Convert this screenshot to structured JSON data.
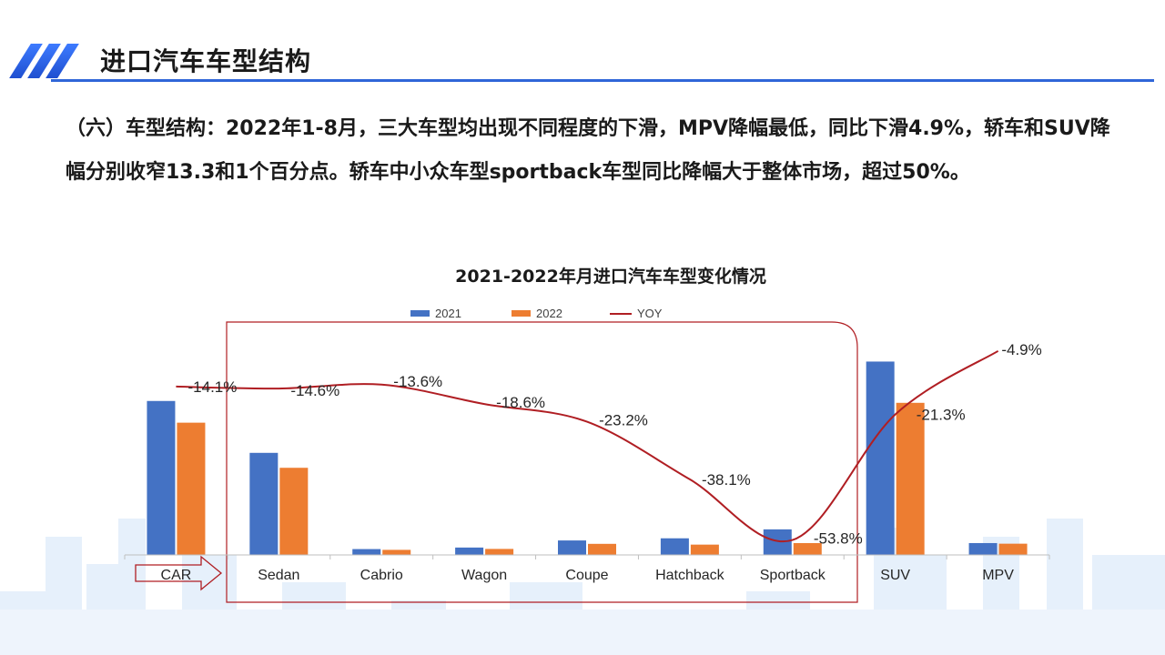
{
  "slide": {
    "title": "进口汽车车型结构",
    "paragraph": "（六）车型结构：2022年1-8月，三大车型均出现不同程度的下滑，MPV降幅最低，同比下滑4.9%，轿车和SUV降幅分别收窄13.3和1个百分点。轿车中小众车型sportback车型同比降幅大于整体市场，超过50%。"
  },
  "colors": {
    "accent": "#2f66d8",
    "series_2021": "#4472c4",
    "series_2022": "#ed7d31",
    "yoy_line": "#b01e23",
    "highlight_box": "#b01e23"
  },
  "chart_data": {
    "type": "bar",
    "title": "2021-2022年月进口汽车车型变化情况",
    "categories": [
      "CAR",
      "Sedan",
      "Cabrio",
      "Wagon",
      "Coupe",
      "Hatchback",
      "Sportback",
      "SUV",
      "MPV"
    ],
    "series": [
      {
        "name": "2021",
        "type": "bar",
        "values": [
          100,
          66.3,
          3.8,
          4.8,
          9.4,
          10.8,
          16.6,
          125.6,
          7.7
        ]
      },
      {
        "name": "2022",
        "type": "bar",
        "values": [
          85.9,
          56.6,
          3.3,
          3.9,
          7.2,
          6.7,
          7.7,
          98.8,
          7.3
        ]
      },
      {
        "name": "YOY",
        "type": "line",
        "values": [
          -14.1,
          -14.6,
          -13.6,
          -18.6,
          -23.2,
          -38.1,
          -53.8,
          -21.3,
          -4.9
        ]
      }
    ],
    "yoy_labels": [
      "-14.1%",
      "-14.6%",
      "-13.6%",
      "-18.6%",
      "-23.2%",
      "-38.1%",
      "-53.8%",
      "-21.3%",
      "-4.9%"
    ],
    "legend_position": "top",
    "grid": false
  }
}
